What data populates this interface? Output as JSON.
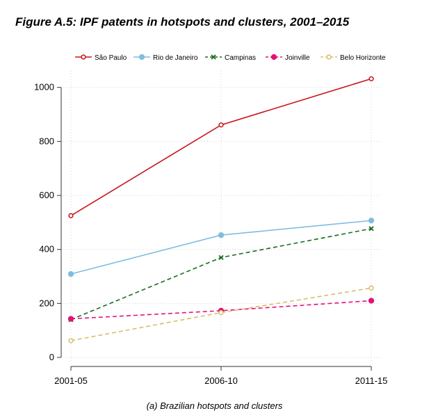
{
  "figure": {
    "title": "Figure A.5: IPF patents in hotspots and clusters, 2001–2015",
    "caption": "(a) Brazilian hotspots and clusters"
  },
  "chart_data": {
    "type": "line",
    "title": "",
    "xlabel": "",
    "ylabel": "",
    "categories": [
      "2001-05",
      "2006-10",
      "2011-15"
    ],
    "ylim": [
      0,
      1050
    ],
    "yticks": [
      0,
      200,
      400,
      600,
      800,
      1000
    ],
    "grid": true,
    "legend_position": "top",
    "series": [
      {
        "name": "São Paulo",
        "values": [
          525,
          861,
          1032
        ],
        "color": "#c8151b",
        "dash": "solid",
        "marker": "open-circle"
      },
      {
        "name": "Rio de Janeiro",
        "values": [
          309,
          453,
          507
        ],
        "color": "#7fbde0",
        "dash": "solid",
        "marker": "filled-circle"
      },
      {
        "name": "Campinas",
        "values": [
          140,
          370,
          477
        ],
        "color": "#1a6b1a",
        "dash": "dashed",
        "marker": "cross"
      },
      {
        "name": "Joinville",
        "values": [
          143,
          173,
          210
        ],
        "color": "#e3127b",
        "dash": "dashed",
        "marker": "filled-circle"
      },
      {
        "name": "Belo Horizonte",
        "values": [
          62,
          166,
          257
        ],
        "color": "#d8bd6a",
        "dash": "dashed",
        "marker": "open-circle"
      }
    ]
  }
}
